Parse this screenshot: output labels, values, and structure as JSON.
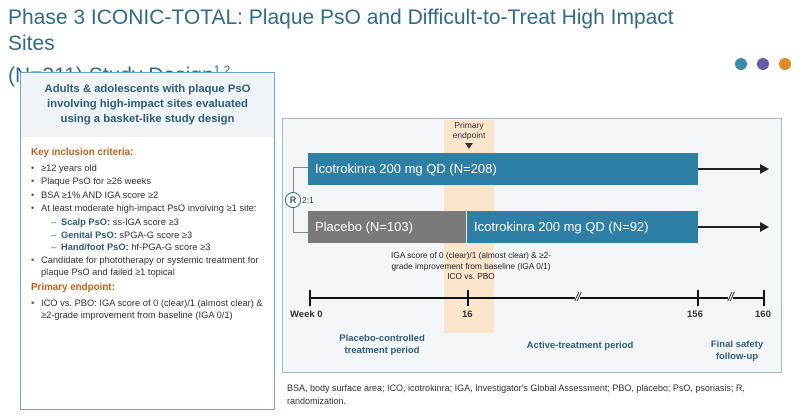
{
  "title": {
    "line1": "Phase 3 ICONIC-TOTAL: Plaque PsO and Difficult-to-Treat High Impact Sites",
    "line2": "(N=311) Study Design",
    "refs": "1,2"
  },
  "colors": {
    "dot1": "#3a8aa8",
    "dot2": "#6b58a8",
    "dot3": "#e0892b",
    "bar_blue": "#2e7fa6",
    "bar_gray": "#7a7a7a",
    "shade": "#fbe5cc"
  },
  "left": {
    "heading": "Adults & adolescents with plaque PsO involving high-impact sites evaluated using a basket-like study design",
    "inclusion_title": "Key inclusion criteria:",
    "inclusion": [
      "≥12 years old",
      "Plaque PsO for ≥26 weeks",
      "BSA ≥1% AND IGA score ≥2",
      "At least moderate high-impact PsO involving ≥1 site:"
    ],
    "sites": [
      {
        "name": "Scalp PsO:",
        "score": "ss-IGA score ≥3"
      },
      {
        "name": "Genital PsO:",
        "score": "sPGA-G score ≥3"
      },
      {
        "name": "Hand/foot PsO:",
        "score": "hf-PGA-G score ≥3"
      }
    ],
    "inclusion_last": "Candidate for phototherapy or systemic treatment for plaque PsO and failed ≥1 topical",
    "endpoint_title": "Primary endpoint:",
    "endpoint": "ICO vs. PBO: IGA score of 0 (clear)/1 (almost clear) & ≥2-grade improvement from baseline (IGA 0/1)"
  },
  "diagram": {
    "primary_endpoint": "Primary endpoint",
    "randomization": "R",
    "ratio": "2:1",
    "arm1": "Icotrokinra 200 mg QD (N=208)",
    "arm2_placebo": "Placebo (N=103)",
    "arm2_active": "Icotrokinra 200 mg QD (N=92)",
    "criteria": "IGA score of 0 (clear)/1 (almost clear) & ≥2-grade improvement from baseline (IGA 0/1) ICO vs. PBO",
    "ticks": {
      "start": "Week 0",
      "mid": "16",
      "end": "156",
      "last": "160"
    },
    "periods": {
      "placebo": "Placebo-controlled treatment period",
      "active": "Active-treatment period",
      "safety": "Final safety follow-up"
    }
  },
  "footnote": "BSA, body surface area; ICO, icotrokinra; IGA, Investigator's Global Assessment; PBO, placebo; PsO, psoriasis; R, randomization."
}
